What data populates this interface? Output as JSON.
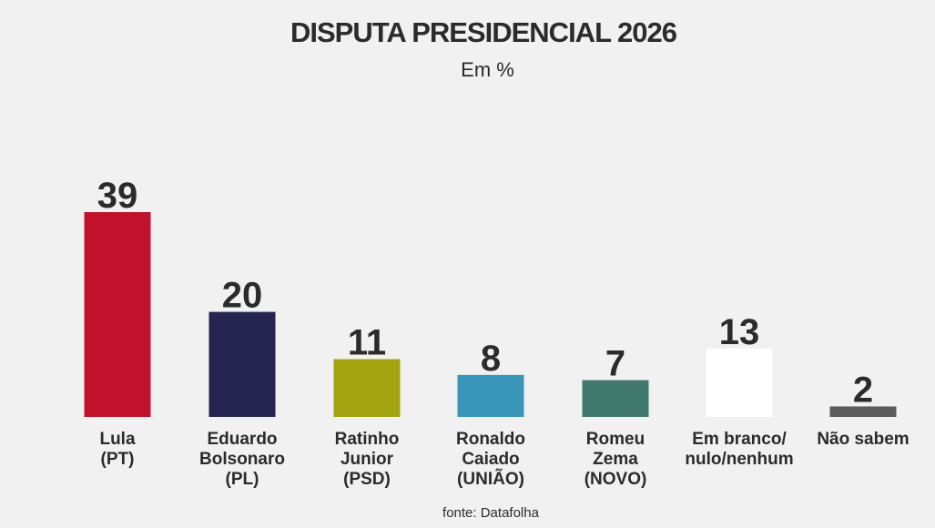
{
  "chart_data": {
    "type": "bar",
    "title": "DISPUTA PRESIDENCIAL 2026",
    "subtitle": "Em %",
    "categories": [
      [
        "Lula",
        "(PT)"
      ],
      [
        "Eduardo",
        "Bolsonaro",
        "(PL)"
      ],
      [
        "Ratinho",
        "Junior",
        "(PSD)"
      ],
      [
        "Ronaldo",
        "Caiado",
        "(UNIÃO)"
      ],
      [
        "Romeu",
        "Zema",
        "(NOVO)"
      ],
      [
        "Em branco/",
        "nulo/nenhum"
      ],
      [
        "Não sabem"
      ]
    ],
    "values": [
      39,
      20,
      11,
      8,
      7,
      13,
      2
    ],
    "colors": [
      "#c0122c",
      "#26254f",
      "#a3a310",
      "#3a96b8",
      "#41786e",
      "#ffffff",
      "#5c5c5c"
    ],
    "ylim": [
      0,
      39
    ],
    "grid": false,
    "legend": "none",
    "source": "fonte: Datafolha"
  }
}
